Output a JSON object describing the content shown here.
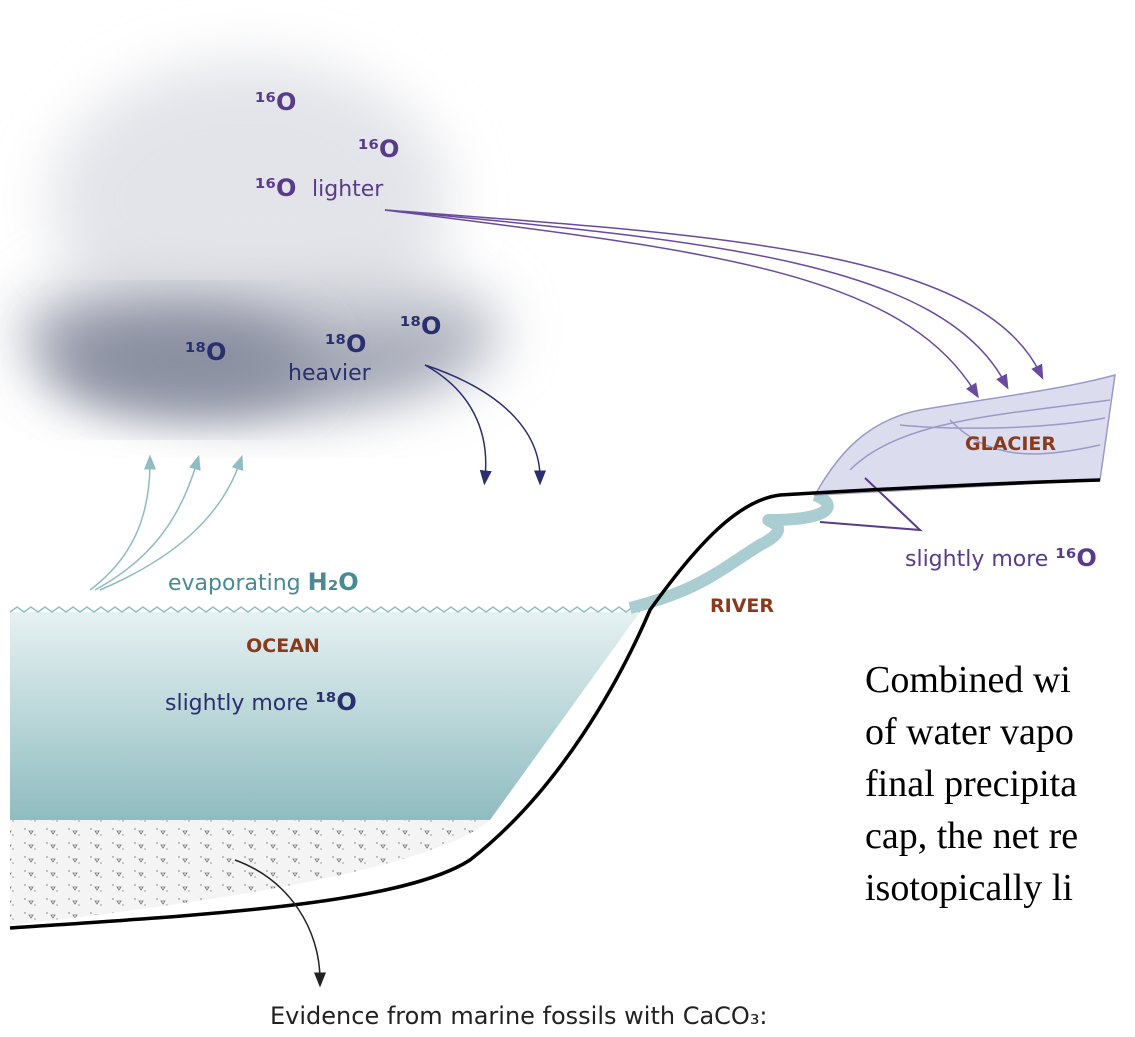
{
  "cloud": {
    "light_isotopes": [
      "¹⁶O",
      "¹⁶O",
      "¹⁶O"
    ],
    "light_label": "lighter",
    "heavy_isotopes": [
      "¹⁸O",
      "¹⁸O",
      "¹⁸O"
    ],
    "heavy_label": "heavier"
  },
  "ocean": {
    "evaporation": {
      "text": "evaporating",
      "formula": "H₂O"
    },
    "label": "OCEAN",
    "composition": {
      "text": "slightly more",
      "isotope": "¹⁸O"
    }
  },
  "river": {
    "label": "RIVER"
  },
  "glacier": {
    "label": "GLACIER",
    "composition": {
      "text": "slightly more",
      "isotope": "¹⁶O"
    }
  },
  "caption": "Evidence from marine fossils with CaCO₃:",
  "paragraph": {
    "lines": [
      "Combined wi",
      "of water vapo",
      "final precipita",
      "cap, the net re",
      "isotopically li"
    ]
  }
}
